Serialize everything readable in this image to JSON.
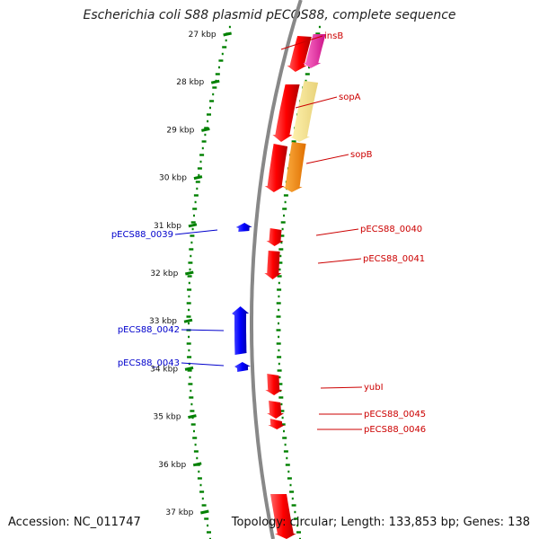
{
  "title": "Escherichia coli S88 plasmid pECOS88, complete sequence",
  "accession": "Accession: NC_011747",
  "summary": "Topology: circular; Length: 133,853 bp; Genes: 138",
  "colors": {
    "forward_strand": "#ff0000",
    "reverse_strand": "#0000ff",
    "gene_label_forward": "#cc0000",
    "gene_label_reverse": "#0000cc",
    "gc_track": "#008000",
    "backbone": "#888888"
  },
  "kbp_ticks": [
    {
      "label": "27 kbp"
    },
    {
      "label": "28 kbp"
    },
    {
      "label": "29 kbp"
    },
    {
      "label": "30 kbp"
    },
    {
      "label": "31 kbp"
    },
    {
      "label": "32 kbp"
    },
    {
      "label": "33 kbp"
    },
    {
      "label": "34 kbp"
    },
    {
      "label": "35 kbp"
    },
    {
      "label": "36 kbp"
    },
    {
      "label": "37 kbp"
    }
  ],
  "gene_labels": [
    {
      "name": "insB",
      "strand": "forward"
    },
    {
      "name": "sopA",
      "strand": "forward"
    },
    {
      "name": "sopB",
      "strand": "forward"
    },
    {
      "name": "pECS88_0040",
      "strand": "forward"
    },
    {
      "name": "pECS88_0041",
      "strand": "forward"
    },
    {
      "name": "yubI",
      "strand": "forward"
    },
    {
      "name": "pECS88_0045",
      "strand": "forward"
    },
    {
      "name": "pECS88_0046",
      "strand": "forward"
    },
    {
      "name": "pECS88_0039",
      "strand": "reverse"
    },
    {
      "name": "pECS88_0042",
      "strand": "reverse"
    },
    {
      "name": "pECS88_0043",
      "strand": "reverse"
    }
  ]
}
